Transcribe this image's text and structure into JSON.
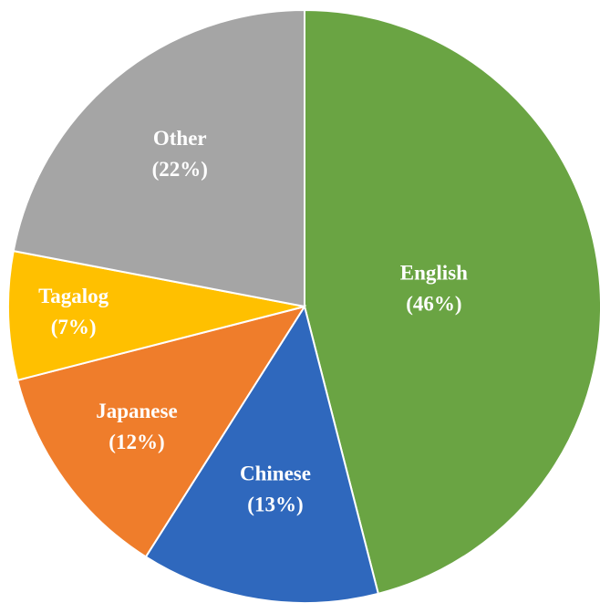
{
  "chart_data": {
    "type": "pie",
    "categories": [
      "English",
      "Chinese",
      "Japanese",
      "Tagalog",
      "Other"
    ],
    "values": [
      46,
      13,
      12,
      7,
      22
    ],
    "value_labels": [
      "(46%)",
      "(13%)",
      "(12%)",
      "(7%)",
      "(22%)"
    ],
    "colors": [
      "#6aa443",
      "#2f68bd",
      "#ef7d2b",
      "#ffc000",
      "#a5a5a5"
    ]
  }
}
